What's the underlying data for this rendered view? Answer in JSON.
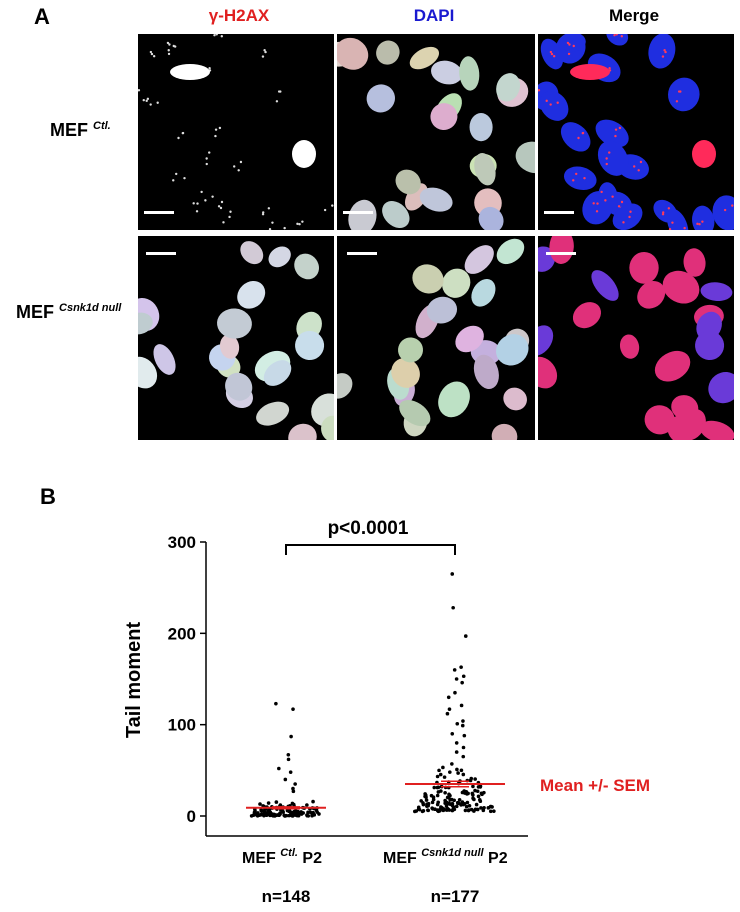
{
  "panel_a": {
    "letter": "A",
    "columns": [
      {
        "label": "γ-H2AX",
        "color": "#e02020"
      },
      {
        "label": "DAPI",
        "color": "#1a1ad0"
      },
      {
        "label": "Merge",
        "color": "#000000"
      }
    ],
    "rows": [
      {
        "label": "MEF",
        "superscript": "Ctl."
      },
      {
        "label": "MEF",
        "superscript": "Csnk1d null"
      }
    ]
  },
  "panel_b": {
    "letter": "B",
    "chart_data": {
      "type": "scatter",
      "ylabel": "Tail moment",
      "ylim": [
        0,
        300
      ],
      "yticks": [
        0,
        100,
        200,
        300
      ],
      "categories": [
        {
          "label": "MEF",
          "superscript": "Ctl.",
          "suffix": "P2",
          "n_label": "n=148",
          "mean": 9,
          "sem": 1,
          "notable_values": [
            123,
            117,
            87,
            67,
            62,
            52,
            48,
            40,
            35,
            30,
            27
          ]
        },
        {
          "label": "MEF",
          "superscript": "Csnk1d null",
          "suffix": "P2",
          "n_label": "n=177",
          "mean": 35,
          "sem": 3,
          "notable_values": [
            265,
            228,
            197,
            163,
            160,
            153,
            150,
            146,
            135,
            130,
            121,
            117,
            112,
            104,
            101,
            99,
            90,
            88,
            80,
            75,
            70,
            65
          ]
        }
      ],
      "significance": "p<0.0001",
      "annotation": "Mean +/- SEM",
      "colors": {
        "points": "#000000",
        "mean": "#e02020",
        "annotation": "#e02020"
      }
    }
  }
}
